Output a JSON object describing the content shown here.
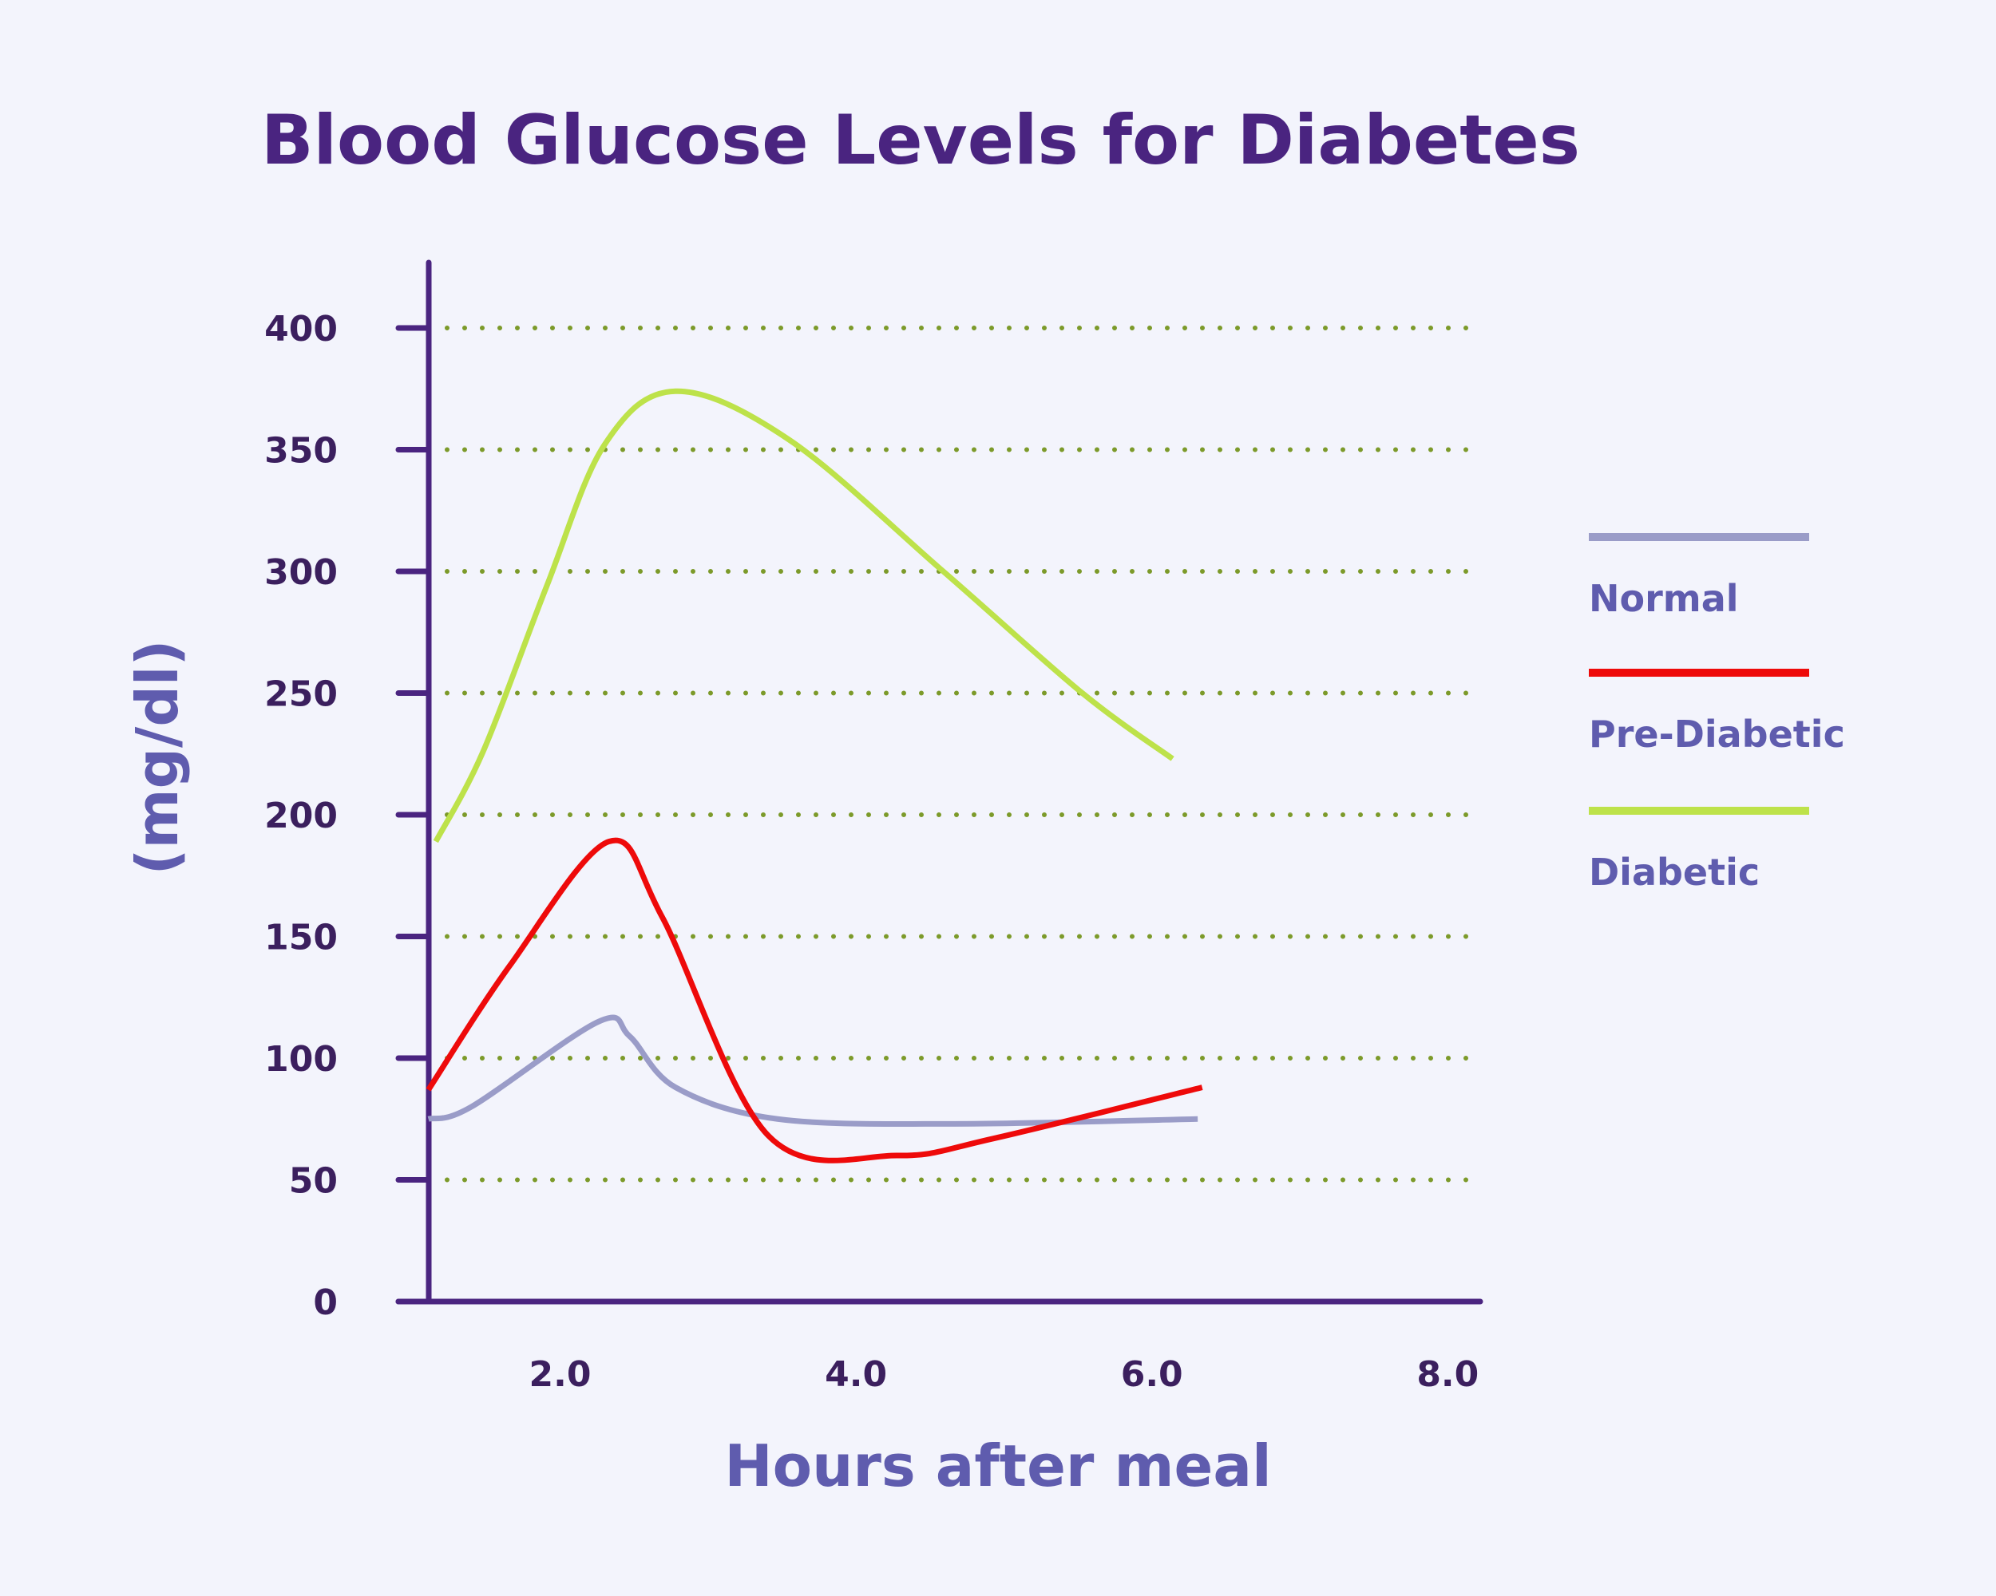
{
  "chart_data": {
    "type": "line",
    "title": "Blood Glucose Levels for Diabetes",
    "xlabel": "Hours after meal",
    "ylabel": "(mg/dl)",
    "xlim": [
      1.1,
      8.2
    ],
    "ylim": [
      0,
      420
    ],
    "x_ticks": [
      "2.0",
      "4.0",
      "6.0",
      "8.0"
    ],
    "x_tick_values": [
      2,
      4,
      6,
      8
    ],
    "y_ticks": [
      "0",
      "50",
      "100",
      "150",
      "200",
      "250",
      "300",
      "350",
      "400"
    ],
    "y_tick_values": [
      0,
      50,
      100,
      150,
      200,
      250,
      300,
      350,
      400
    ],
    "grid": "horizontal dotted",
    "grid_color": "#7c9a2a",
    "axis_color": "#4a2480",
    "legend_position": "right",
    "series": [
      {
        "name": "Normal",
        "color": "#9a9cc8",
        "x": [
          1.11,
          1.4,
          2.26,
          2.47,
          2.78,
          3.47,
          4.67,
          6.31
        ],
        "y": [
          75,
          80,
          115,
          109,
          88,
          75,
          73,
          75
        ]
      },
      {
        "name": "Pre-Diabetic",
        "color": "#ee0a0a",
        "x": [
          1.11,
          1.66,
          2.33,
          2.69,
          3.41,
          4.28,
          4.93,
          6.34
        ],
        "y": [
          87,
          138,
          189,
          158,
          68,
          60,
          67,
          88
        ]
      },
      {
        "name": "Diabetic",
        "color": "#bde24a",
        "x": [
          1.16,
          1.48,
          1.91,
          2.3,
          2.78,
          3.55,
          4.59,
          5.53,
          6.14
        ],
        "y": [
          189,
          226,
          294,
          352,
          374,
          354,
          300,
          250,
          223
        ]
      }
    ]
  }
}
